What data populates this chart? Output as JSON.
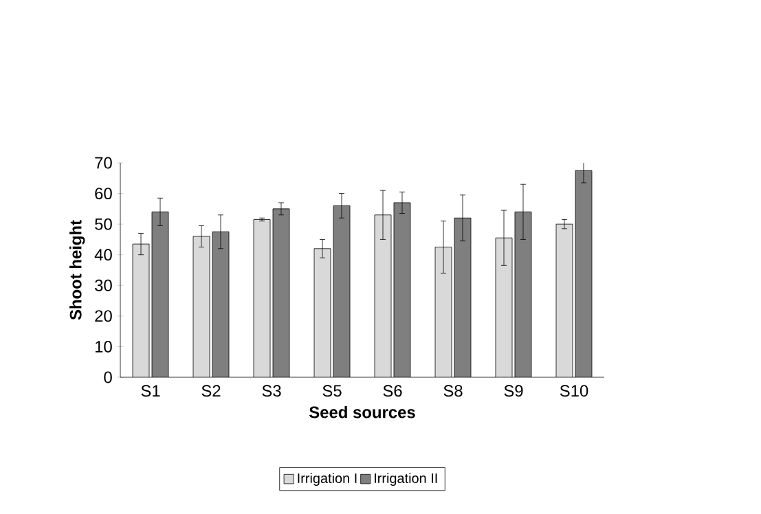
{
  "chart_data": {
    "type": "bar",
    "xlabel": "Seed sources",
    "ylabel": "Shoot height",
    "categories": [
      "S1",
      "S2",
      "S3",
      "S5",
      "S6",
      "S8",
      "S9",
      "S10"
    ],
    "series": [
      {
        "name": "Irrigation I",
        "color": "#d9d9d9",
        "values": [
          43.5,
          46,
          51.5,
          42,
          53,
          42.5,
          45.5,
          50
        ],
        "errors": [
          3.5,
          3.5,
          0.5,
          3,
          8,
          8.5,
          9,
          1.5
        ]
      },
      {
        "name": "Irrigation II",
        "color": "#7f7f7f",
        "values": [
          54,
          47.5,
          55,
          56,
          57,
          52,
          54,
          67.5
        ],
        "errors": [
          4.5,
          5.5,
          2,
          4,
          3.5,
          7.5,
          9,
          4
        ]
      }
    ],
    "ylim": [
      0,
      70
    ],
    "yticks": [
      0,
      10,
      20,
      30,
      40,
      50,
      60,
      70
    ],
    "grid": false,
    "legend": "bottom"
  }
}
